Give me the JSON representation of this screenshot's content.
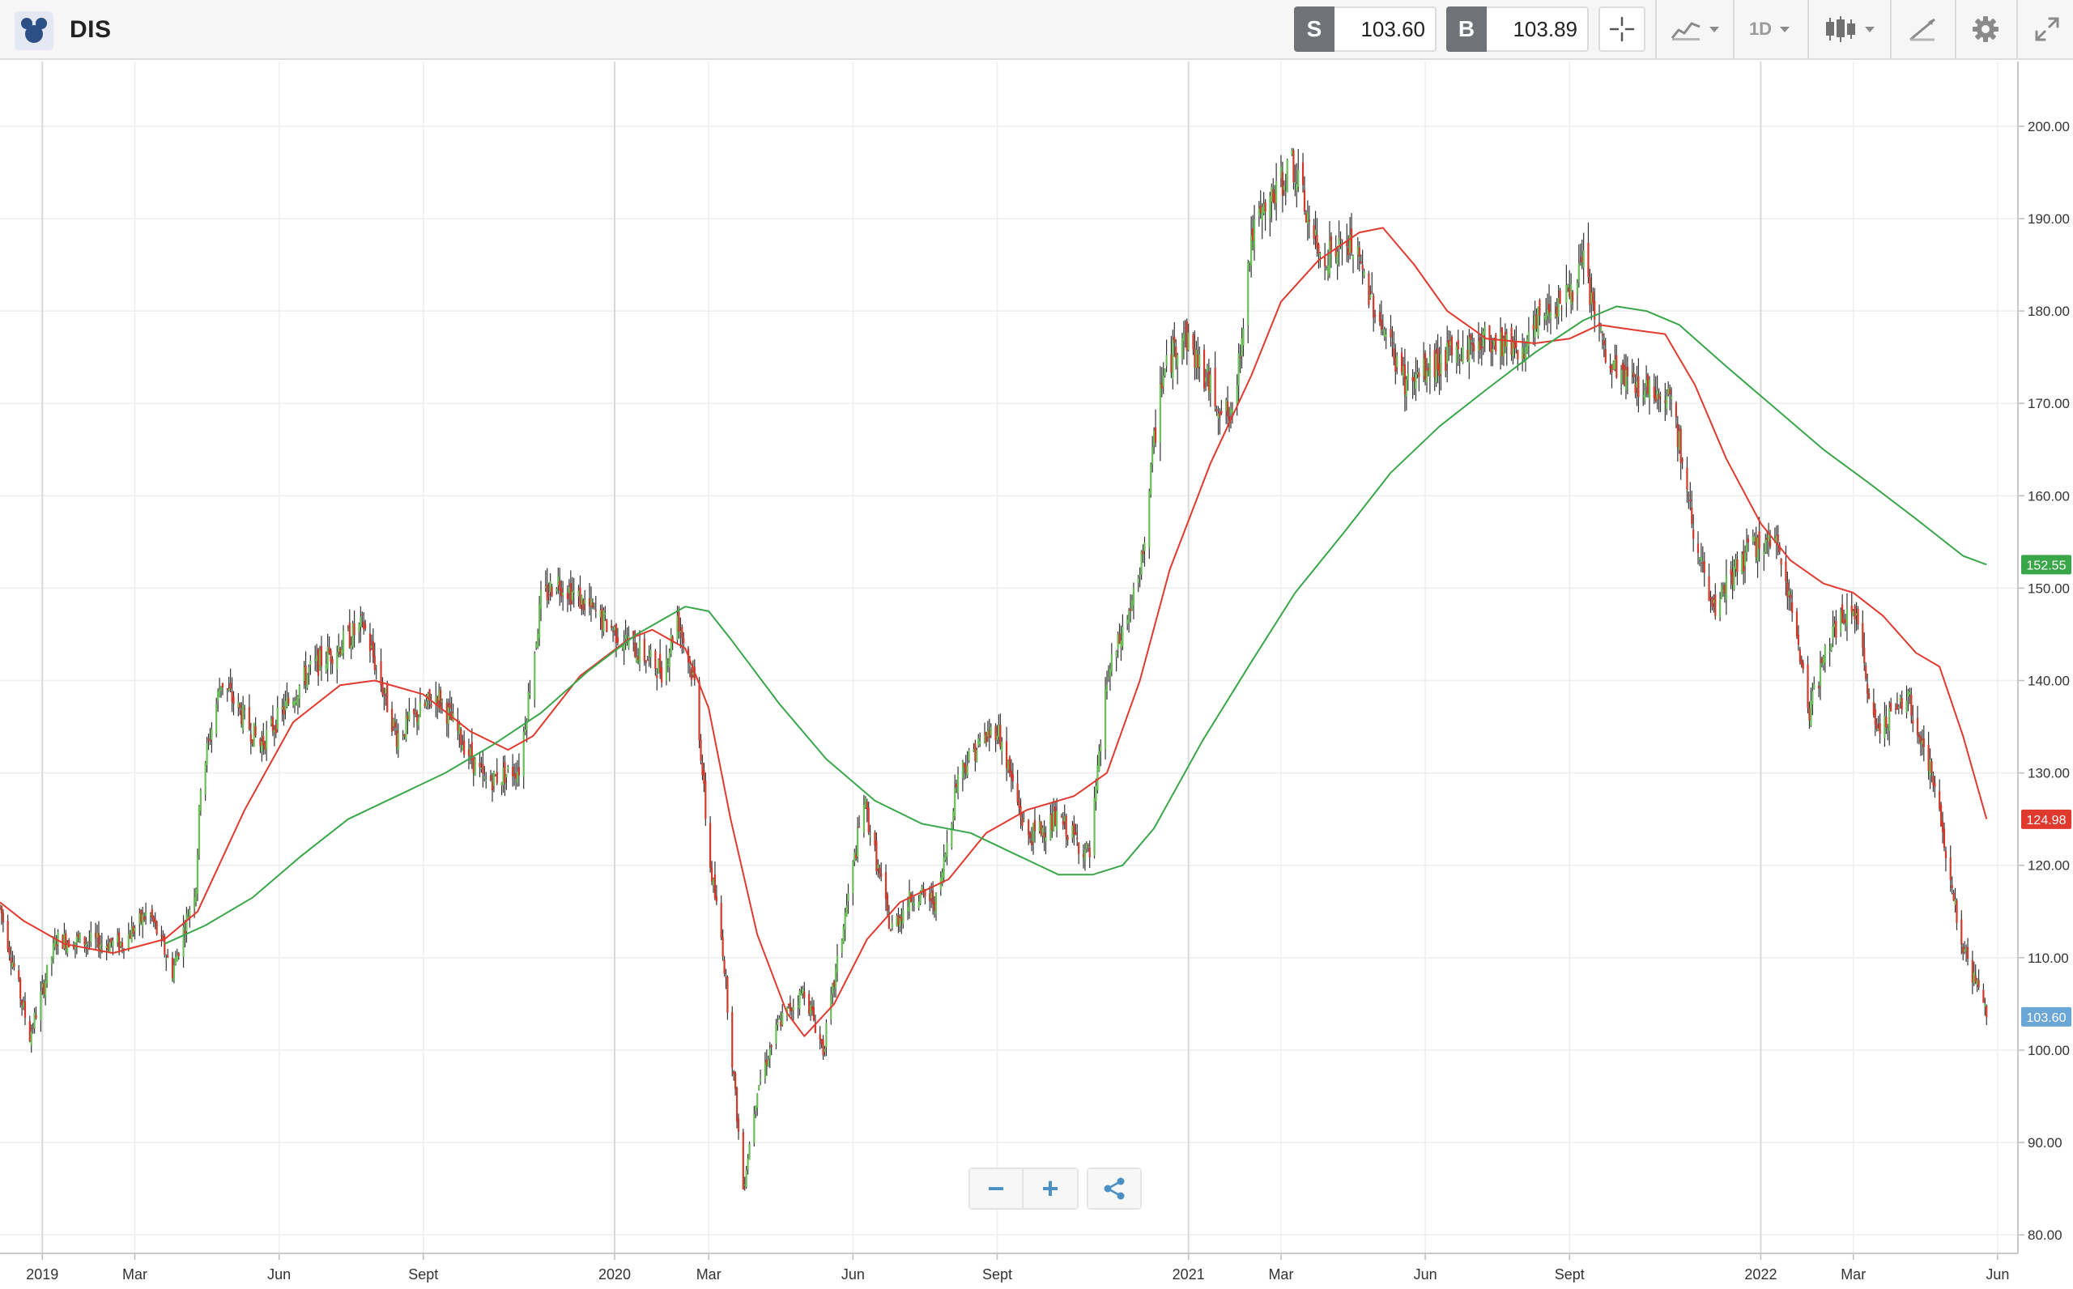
{
  "header": {
    "symbol": "DIS",
    "sell": {
      "tag": "S",
      "price": "103.60"
    },
    "buy": {
      "tag": "B",
      "price": "103.89"
    },
    "timeframe": "1D"
  },
  "icons": {
    "logo": "disney-logo-icon",
    "crosshair": "crosshair-icon",
    "chart_type": "line-chart-icon",
    "candles": "candlestick-icon",
    "draw": "drawing-tools-icon",
    "settings": "gear-icon",
    "fullscreen": "expand-icon",
    "zoom_out": "minus-icon",
    "zoom_in": "plus-icon",
    "share": "share-icon"
  },
  "zoom": {
    "out_label": "−",
    "in_label": "+"
  },
  "chart_data": {
    "type": "candlestick",
    "symbol": "DIS",
    "x_range": [
      "2018-12-05",
      "2022-06-14"
    ],
    "ylim": [
      78,
      207
    ],
    "yticks": [
      80,
      90,
      100,
      110,
      120,
      130,
      140,
      150,
      160,
      170,
      180,
      190,
      200
    ],
    "ytick_labels": [
      "80.00",
      "90.00",
      "100.00",
      "110.00",
      "120.00",
      "130.00",
      "140.00",
      "150.00",
      "160.00",
      "170.00",
      "180.00",
      "190.00",
      "200.00"
    ],
    "xticks": [
      {
        "date": "2019-01-01",
        "label": "2019",
        "major": true
      },
      {
        "date": "2019-03-01",
        "label": "Mar",
        "major": false
      },
      {
        "date": "2019-06-01",
        "label": "Jun",
        "major": false
      },
      {
        "date": "2019-09-01",
        "label": "Sept",
        "major": false
      },
      {
        "date": "2020-01-01",
        "label": "2020",
        "major": true
      },
      {
        "date": "2020-03-01",
        "label": "Mar",
        "major": false
      },
      {
        "date": "2020-06-01",
        "label": "Jun",
        "major": false
      },
      {
        "date": "2020-09-01",
        "label": "Sept",
        "major": false
      },
      {
        "date": "2021-01-01",
        "label": "2021",
        "major": true
      },
      {
        "date": "2021-03-01",
        "label": "Mar",
        "major": false
      },
      {
        "date": "2021-06-01",
        "label": "Jun",
        "major": false
      },
      {
        "date": "2021-09-01",
        "label": "Sept",
        "major": false
      },
      {
        "date": "2022-01-01",
        "label": "2022",
        "major": true
      },
      {
        "date": "2022-03-01",
        "label": "Mar",
        "major": false
      },
      {
        "date": "2022-06-01",
        "label": "Jun",
        "major": false
      }
    ],
    "price_path": [
      [
        "2018-12-05",
        115.5
      ],
      [
        "2018-12-24",
        101.5
      ],
      [
        "2019-01-10",
        112.0
      ],
      [
        "2019-02-20",
        111.5
      ],
      [
        "2019-03-10",
        115.0
      ],
      [
        "2019-03-25",
        108.5
      ],
      [
        "2019-04-09",
        118.0
      ],
      [
        "2019-04-12",
        129.0
      ],
      [
        "2019-04-25",
        140.0
      ],
      [
        "2019-05-20",
        133.0
      ],
      [
        "2019-06-20",
        141.0
      ],
      [
        "2019-07-25",
        146.0
      ],
      [
        "2019-08-15",
        134.0
      ],
      [
        "2019-09-10",
        138.5
      ],
      [
        "2019-10-10",
        129.0
      ],
      [
        "2019-11-01",
        130.5
      ],
      [
        "2019-11-15",
        148.5
      ],
      [
        "2019-11-25",
        151.0
      ],
      [
        "2020-01-10",
        144.0
      ],
      [
        "2020-02-01",
        141.0
      ],
      [
        "2020-02-10",
        147.0
      ],
      [
        "2020-02-22",
        139.0
      ],
      [
        "2020-03-01",
        121.0
      ],
      [
        "2020-03-10",
        111.0
      ],
      [
        "2020-03-23",
        85.0
      ],
      [
        "2020-04-01",
        96.0
      ],
      [
        "2020-04-15",
        103.0
      ],
      [
        "2020-05-01",
        106.5
      ],
      [
        "2020-05-13",
        100.0
      ],
      [
        "2020-06-08",
        127.0
      ],
      [
        "2020-06-25",
        113.0
      ],
      [
        "2020-07-10",
        117.0
      ],
      [
        "2020-07-25",
        116.0
      ],
      [
        "2020-08-07",
        130.0
      ],
      [
        "2020-08-20",
        133.0
      ],
      [
        "2020-09-01",
        135.0
      ],
      [
        "2020-09-20",
        123.0
      ],
      [
        "2020-10-10",
        125.0
      ],
      [
        "2020-10-30",
        121.0
      ],
      [
        "2020-11-10",
        140.0
      ],
      [
        "2020-12-01",
        151.0
      ],
      [
        "2020-12-14",
        172.0
      ],
      [
        "2020-12-28",
        178.0
      ],
      [
        "2021-01-20",
        170.0
      ],
      [
        "2021-01-29",
        168.0
      ],
      [
        "2021-02-10",
        188.0
      ],
      [
        "2021-03-08",
        196.0
      ],
      [
        "2021-03-25",
        186.0
      ],
      [
        "2021-04-15",
        187.0
      ],
      [
        "2021-05-10",
        176.0
      ],
      [
        "2021-05-20",
        172.0
      ],
      [
        "2021-06-15",
        175.0
      ],
      [
        "2021-07-10",
        177.0
      ],
      [
        "2021-08-05",
        176.0
      ],
      [
        "2021-08-15",
        180.0
      ],
      [
        "2021-09-01",
        182.0
      ],
      [
        "2021-09-10",
        185.0
      ],
      [
        "2021-09-25",
        174.0
      ],
      [
        "2021-10-15",
        172.0
      ],
      [
        "2021-11-05",
        171.0
      ],
      [
        "2021-11-15",
        160.0
      ],
      [
        "2021-12-01",
        147.0
      ],
      [
        "2021-12-15",
        152.0
      ],
      [
        "2021-12-31",
        155.0
      ],
      [
        "2022-01-14",
        154.0
      ],
      [
        "2022-02-01",
        137.0
      ],
      [
        "2022-02-15",
        145.0
      ],
      [
        "2022-03-01",
        148.0
      ],
      [
        "2022-03-15",
        135.0
      ],
      [
        "2022-04-05",
        138.0
      ],
      [
        "2022-04-20",
        130.0
      ],
      [
        "2022-05-10",
        111.0
      ],
      [
        "2022-05-25",
        104.0
      ]
    ],
    "series": [
      {
        "name": "",
        "color": "#e03a2f",
        "values": [
          [
            "2018-12-05",
            116.0
          ],
          [
            "2018-12-20",
            114.0
          ],
          [
            "2019-01-15",
            111.5
          ],
          [
            "2019-02-15",
            110.5
          ],
          [
            "2019-03-20",
            112.0
          ],
          [
            "2019-04-10",
            115.0
          ],
          [
            "2019-05-10",
            126.0
          ],
          [
            "2019-06-10",
            135.5
          ],
          [
            "2019-07-10",
            139.5
          ],
          [
            "2019-08-01",
            140.0
          ],
          [
            "2019-09-01",
            138.5
          ],
          [
            "2019-10-01",
            134.5
          ],
          [
            "2019-10-25",
            132.5
          ],
          [
            "2019-11-10",
            134.0
          ],
          [
            "2019-12-10",
            140.5
          ],
          [
            "2020-01-10",
            144.5
          ],
          [
            "2020-01-25",
            145.5
          ],
          [
            "2020-02-15",
            143.5
          ],
          [
            "2020-03-01",
            137.0
          ],
          [
            "2020-03-15",
            125.0
          ],
          [
            "2020-04-01",
            112.5
          ],
          [
            "2020-04-20",
            104.0
          ],
          [
            "2020-05-01",
            101.5
          ],
          [
            "2020-05-20",
            105.0
          ],
          [
            "2020-06-10",
            112.0
          ],
          [
            "2020-07-01",
            116.0
          ],
          [
            "2020-08-01",
            118.5
          ],
          [
            "2020-08-25",
            123.5
          ],
          [
            "2020-09-20",
            126.0
          ],
          [
            "2020-10-20",
            127.5
          ],
          [
            "2020-11-10",
            130.0
          ],
          [
            "2020-12-01",
            140.0
          ],
          [
            "2020-12-20",
            152.0
          ],
          [
            "2021-01-15",
            163.5
          ],
          [
            "2021-02-10",
            173.0
          ],
          [
            "2021-03-01",
            181.0
          ],
          [
            "2021-03-25",
            185.5
          ],
          [
            "2021-04-20",
            188.5
          ],
          [
            "2021-05-05",
            189.0
          ],
          [
            "2021-05-25",
            185.0
          ],
          [
            "2021-06-15",
            180.0
          ],
          [
            "2021-07-10",
            177.0
          ],
          [
            "2021-08-10",
            176.5
          ],
          [
            "2021-09-01",
            177.0
          ],
          [
            "2021-09-20",
            178.5
          ],
          [
            "2021-10-10",
            178.0
          ],
          [
            "2021-11-01",
            177.5
          ],
          [
            "2021-11-20",
            172.0
          ],
          [
            "2021-12-10",
            164.0
          ],
          [
            "2022-01-01",
            157.0
          ],
          [
            "2022-01-20",
            153.0
          ],
          [
            "2022-02-10",
            150.5
          ],
          [
            "2022-03-01",
            149.5
          ],
          [
            "2022-03-20",
            147.0
          ],
          [
            "2022-04-10",
            143.0
          ],
          [
            "2022-04-25",
            141.5
          ],
          [
            "2022-05-10",
            134.0
          ],
          [
            "2022-05-25",
            125.0
          ]
        ]
      },
      {
        "name": "",
        "color": "#3aa64a",
        "values": [
          [
            "2019-03-20",
            111.5
          ],
          [
            "2019-04-15",
            113.5
          ],
          [
            "2019-05-15",
            116.5
          ],
          [
            "2019-06-15",
            121.0
          ],
          [
            "2019-07-15",
            125.0
          ],
          [
            "2019-08-15",
            127.5
          ],
          [
            "2019-09-15",
            130.0
          ],
          [
            "2019-10-15",
            133.0
          ],
          [
            "2019-11-15",
            136.5
          ],
          [
            "2019-12-15",
            141.0
          ],
          [
            "2020-01-15",
            145.0
          ],
          [
            "2020-02-15",
            148.0
          ],
          [
            "2020-03-01",
            147.5
          ],
          [
            "2020-03-15",
            144.5
          ],
          [
            "2020-04-15",
            137.5
          ],
          [
            "2020-05-15",
            131.5
          ],
          [
            "2020-06-15",
            127.0
          ],
          [
            "2020-07-15",
            124.5
          ],
          [
            "2020-08-15",
            123.5
          ],
          [
            "2020-09-15",
            121.0
          ],
          [
            "2020-10-10",
            119.0
          ],
          [
            "2020-11-01",
            119.0
          ],
          [
            "2020-11-20",
            120.0
          ],
          [
            "2020-12-10",
            124.0
          ],
          [
            "2021-01-10",
            133.5
          ],
          [
            "2021-02-10",
            142.0
          ],
          [
            "2021-03-10",
            149.5
          ],
          [
            "2021-04-10",
            156.0
          ],
          [
            "2021-05-10",
            162.5
          ],
          [
            "2021-06-10",
            167.5
          ],
          [
            "2021-07-10",
            171.5
          ],
          [
            "2021-08-10",
            175.5
          ],
          [
            "2021-09-10",
            179.0
          ],
          [
            "2021-10-01",
            180.5
          ],
          [
            "2021-10-20",
            180.0
          ],
          [
            "2021-11-10",
            178.5
          ],
          [
            "2021-12-10",
            174.0
          ],
          [
            "2022-01-10",
            169.5
          ],
          [
            "2022-02-10",
            165.0
          ],
          [
            "2022-03-10",
            161.5
          ],
          [
            "2022-04-10",
            157.5
          ],
          [
            "2022-05-10",
            153.5
          ],
          [
            "2022-05-25",
            152.55
          ]
        ]
      }
    ],
    "price_tags": [
      {
        "label": "152.55",
        "value": 152.55,
        "color": "#3aa64a"
      },
      {
        "label": "124.98",
        "value": 124.98,
        "color": "#e03a2f"
      },
      {
        "label": "103.60",
        "value": 103.6,
        "color": "#6aa7d6"
      }
    ],
    "candle_colors": {
      "up": "#6bbf59",
      "down": "#d2392b",
      "wick": "#333333"
    },
    "grid": true,
    "legend": "none"
  }
}
